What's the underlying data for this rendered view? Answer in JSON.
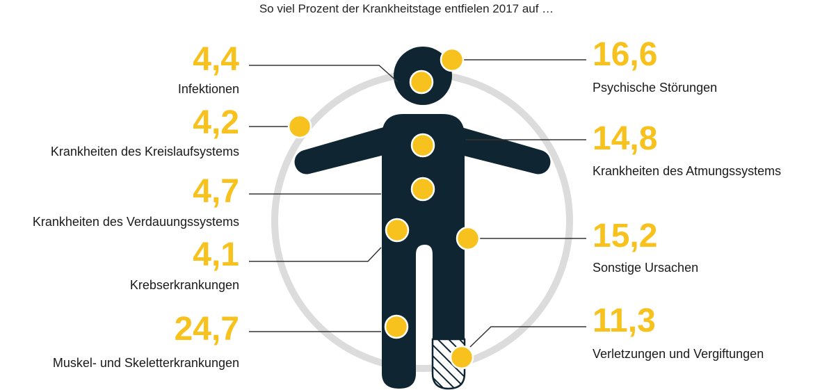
{
  "title": "So viel Prozent der Krankheitstage entfielen 2017 auf …",
  "colors": {
    "accent": "#F7C21E",
    "figure": "#0F2532",
    "circle": "#DCDCDC",
    "line": "#333333"
  },
  "items": [
    {
      "value": "4,4",
      "label": "Infektionen"
    },
    {
      "value": "4,2",
      "label": "Krankheiten des Kreislaufsystems"
    },
    {
      "value": "4,7",
      "label": "Krankheiten des Verdauungssystems"
    },
    {
      "value": "4,1",
      "label": "Krebserkrankungen"
    },
    {
      "value": "24,7",
      "label": "Muskel- und Skeletterkrankungen"
    },
    {
      "value": "16,6",
      "label": "Psychische Störungen"
    },
    {
      "value": "14,8",
      "label": "Krankheiten des Atmungssystems"
    },
    {
      "value": "15,2",
      "label": "Sonstige Ursachen"
    },
    {
      "value": "11,3",
      "label": "Verletzungen und Vergiftungen"
    }
  ]
}
